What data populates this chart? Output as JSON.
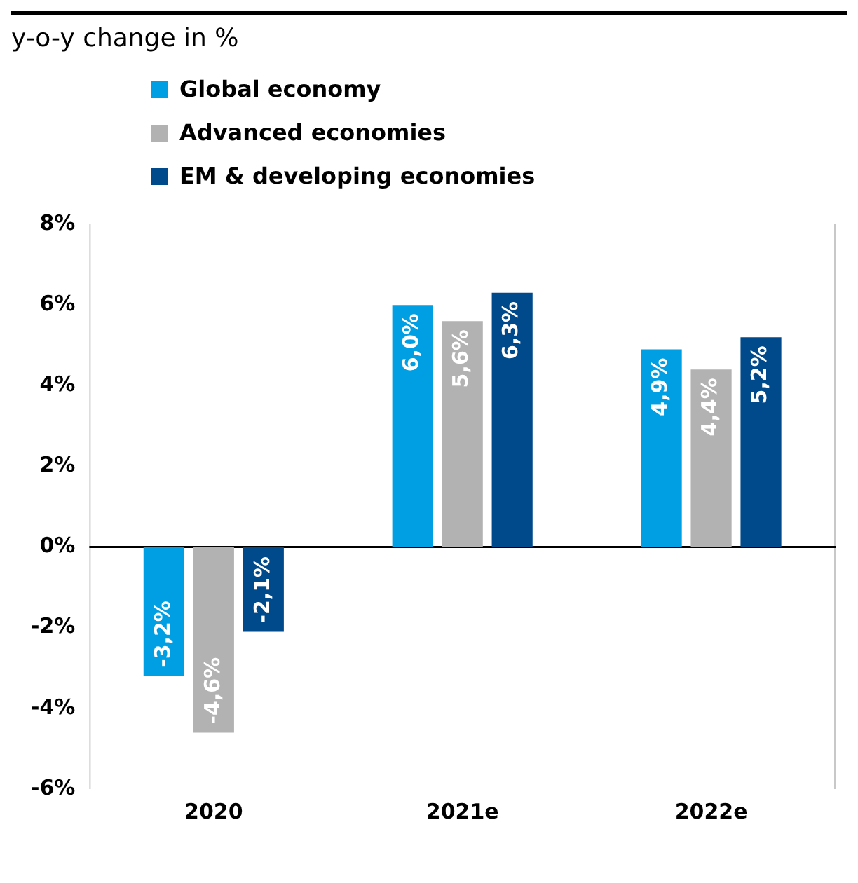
{
  "chart_data": {
    "type": "bar",
    "title": "y-o-y change in %",
    "categories": [
      "2020",
      "2021e",
      "2022e"
    ],
    "series": [
      {
        "name": "Global economy",
        "color": "#009fe3",
        "values": [
          -3.2,
          6.0,
          4.9
        ],
        "value_labels": [
          "-3,2%",
          "6,0%",
          "4,9%"
        ]
      },
      {
        "name": "Advanced economies",
        "color": "#b2b2b2",
        "values": [
          -4.6,
          5.6,
          4.4
        ],
        "value_labels": [
          "-4,6%",
          "5,6%",
          "4,4%"
        ]
      },
      {
        "name": "EM & developing economies",
        "color": "#004a8b",
        "values": [
          -2.1,
          6.3,
          5.2
        ],
        "value_labels": [
          "-2,1%",
          "6,3%",
          "5,2%"
        ]
      }
    ],
    "ylim": [
      -6,
      8
    ],
    "yticks": [
      {
        "value": -6,
        "label": "-6%"
      },
      {
        "value": -4,
        "label": "-4%"
      },
      {
        "value": -2,
        "label": "-2%"
      },
      {
        "value": 0,
        "label": "0%"
      },
      {
        "value": 2,
        "label": "2%"
      },
      {
        "value": 4,
        "label": "4%"
      },
      {
        "value": 6,
        "label": "6%"
      },
      {
        "value": 8,
        "label": "8%"
      }
    ],
    "ref_lines": [
      {
        "axis": "y",
        "value": 0,
        "color": "#000000"
      }
    ],
    "grid": false,
    "legend": "top left"
  }
}
